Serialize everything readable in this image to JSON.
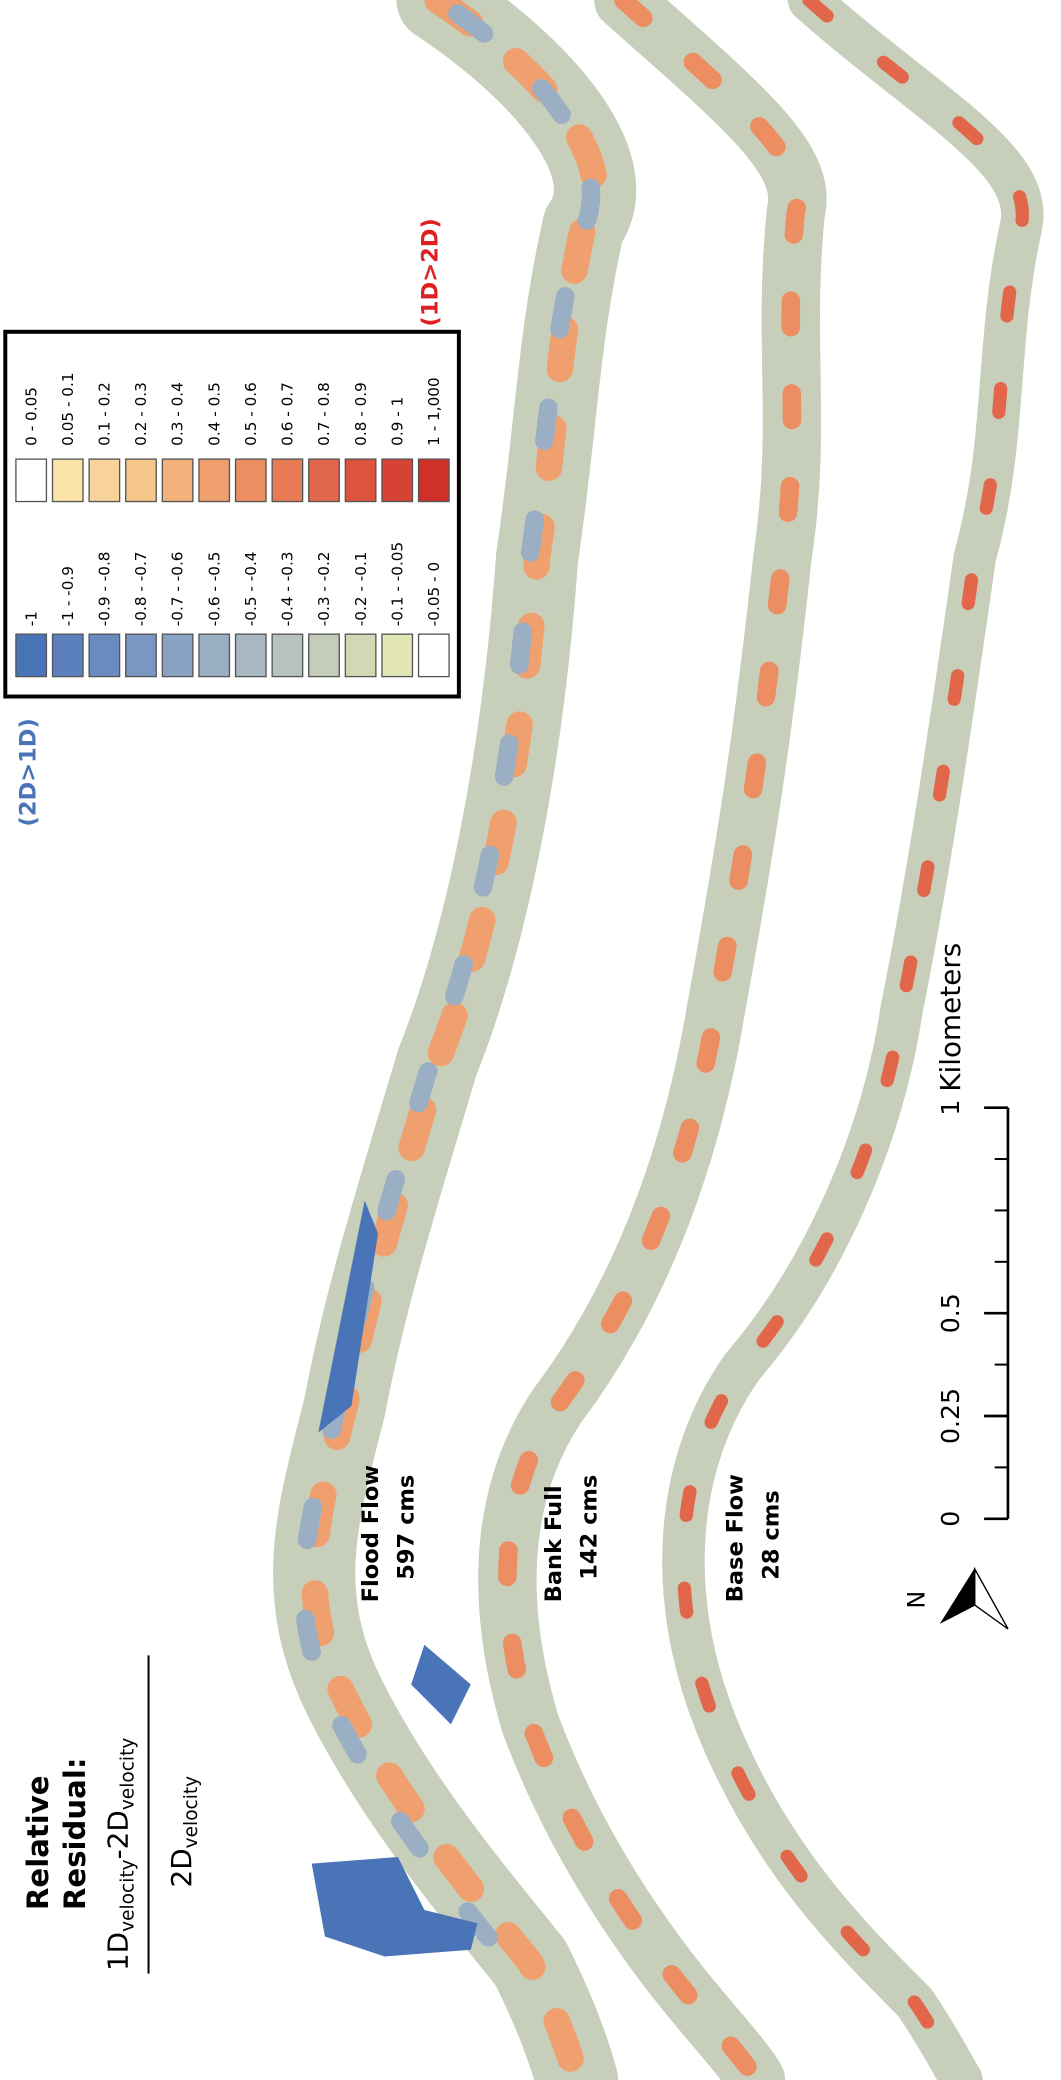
{
  "title": [
    "Relative",
    "Residual:"
  ],
  "formula": {
    "numerator": [
      "1D",
      "velocity",
      "-2D",
      "velocity"
    ],
    "denominator": [
      "2D",
      "velocity"
    ]
  },
  "legend": {
    "left": [
      {
        "label": "-1",
        "color": "#4a74b8"
      },
      {
        "label": "-1 - -0.9",
        "color": "#5b80bd"
      },
      {
        "label": "-0.9 - -0.8",
        "color": "#6a8bc0"
      },
      {
        "label": "-0.8 - -0.7",
        "color": "#7a96c2"
      },
      {
        "label": "-0.7 - -0.6",
        "color": "#8aa2c4"
      },
      {
        "label": "-0.6 - -0.5",
        "color": "#9aaec4"
      },
      {
        "label": "-0.5 - -0.4",
        "color": "#a9b9c3"
      },
      {
        "label": "-0.4 - -0.3",
        "color": "#b5c2c0"
      },
      {
        "label": "-0.3 - -0.2",
        "color": "#c3cdb9"
      },
      {
        "label": "-0.2 - -0.1",
        "color": "#d2d8b4"
      },
      {
        "label": "-0.1 - -0.05",
        "color": "#e2e6b5"
      },
      {
        "label": "-0.05 - 0",
        "color": "#ffffff"
      }
    ],
    "right": [
      {
        "label": "0 - 0.05",
        "color": "#ffffff"
      },
      {
        "label": "0.05 - 0.1",
        "color": "#fbe3a8"
      },
      {
        "label": "0.1 - 0.2",
        "color": "#f8d49a"
      },
      {
        "label": "0.2 - 0.3",
        "color": "#f6c58a"
      },
      {
        "label": "0.3 - 0.4",
        "color": "#f3b27c"
      },
      {
        "label": "0.4 - 0.5",
        "color": "#f0a06e"
      },
      {
        "label": "0.5 - 0.6",
        "color": "#ec8d62"
      },
      {
        "label": "0.6 - 0.7",
        "color": "#e87a56"
      },
      {
        "label": "0.7 - 0.8",
        "color": "#e2664a"
      },
      {
        "label": "0.8 - 0.9",
        "color": "#dc533e"
      },
      {
        "label": "0.9 - 1",
        "color": "#d64234"
      },
      {
        "label": "1 - 1,000",
        "color": "#cf3028"
      }
    ]
  },
  "annotations": {
    "low": "(2D>1D)",
    "high": "(1D>2D)"
  },
  "flows": [
    {
      "name": "Flood Flow",
      "discharge": "597 cms"
    },
    {
      "name": "Bank Full",
      "discharge": "142 cms"
    },
    {
      "name": "Base Flow",
      "discharge": "28 cms"
    }
  ],
  "scale_bar": {
    "ticks": [
      0,
      0.25,
      0.5,
      1
    ],
    "unit": "Kilometers"
  },
  "north": "N"
}
